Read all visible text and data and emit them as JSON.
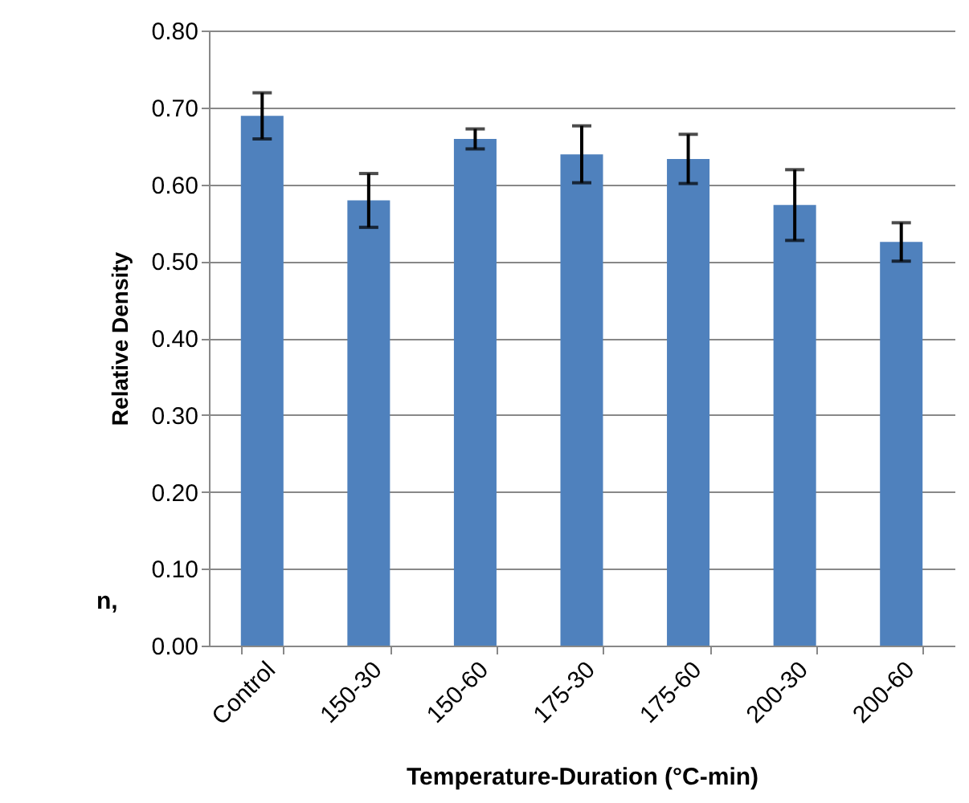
{
  "chart_data": {
    "type": "bar",
    "xlabel": "Temperature-Duration (°C-min)",
    "ylabel": "Relative Density",
    "categories": [
      "Control",
      "150-30",
      "150-60",
      "175-30",
      "175-60",
      "200-30",
      "200-60"
    ],
    "values": [
      0.689,
      0.579,
      0.659,
      0.639,
      0.633,
      0.573,
      0.525
    ],
    "errors": [
      0.03,
      0.035,
      0.013,
      0.037,
      0.032,
      0.046,
      0.025
    ],
    "color": "#4f81bd",
    "ylim": [
      0,
      0.8
    ],
    "yticks": [
      {
        "value": 0,
        "label": "0.00"
      },
      {
        "value": 0.1,
        "label": "0.10"
      },
      {
        "value": 0.2,
        "label": "0.20"
      },
      {
        "value": 0.3,
        "label": "0.30"
      },
      {
        "value": 0.4,
        "label": "0.40"
      },
      {
        "value": 0.5,
        "label": "0.50"
      },
      {
        "value": 0.6,
        "label": "0.60"
      },
      {
        "value": 0.7,
        "label": "0.70"
      },
      {
        "value": 0.8,
        "label": "0.80"
      }
    ],
    "grid": "y",
    "annotations": [
      "n,"
    ]
  }
}
